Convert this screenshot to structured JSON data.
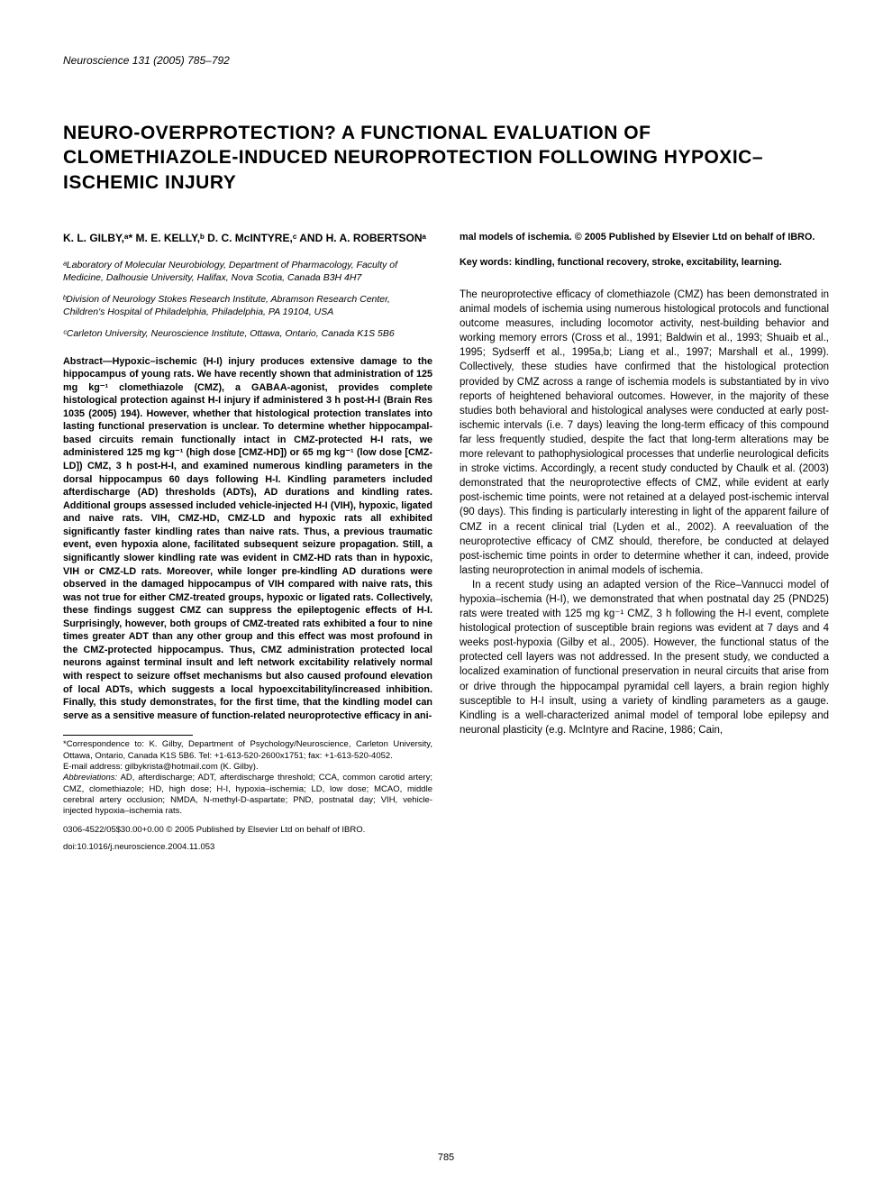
{
  "journal": {
    "name": "Neuroscience",
    "volume": "131",
    "year": "(2005)",
    "pages": "785–792"
  },
  "title": "NEURO-OVERPROTECTION? A FUNCTIONAL EVALUATION OF CLOMETHIAZOLE-INDUCED NEUROPROTECTION FOLLOWING HYPOXIC–ISCHEMIC INJURY",
  "authors": "K. L. GILBY,ᵃ* M. E. KELLY,ᵇ D. C. McINTYRE,ᶜ AND H. A. ROBERTSONᵃ",
  "affiliations": [
    "ᵃLaboratory of Molecular Neurobiology, Department of Pharmacology, Faculty of Medicine, Dalhousie University, Halifax, Nova Scotia, Canada B3H 4H7",
    "ᵇDivision of Neurology Stokes Research Institute, Abramson Research Center, Children's Hospital of Philadelphia, Philadelphia, PA 19104, USA",
    "ᶜCarleton University, Neuroscience Institute, Ottawa, Ontario, Canada K1S 5B6"
  ],
  "abstract": "Abstract—Hypoxic–ischemic (H-I) injury produces extensive damage to the hippocampus of young rats. We have recently shown that administration of 125 mg kg⁻¹ clomethiazole (CMZ), a GABAA-agonist, provides complete histological protection against H-I injury if administered 3 h post-H-I (Brain Res 1035 (2005) 194). However, whether that histological protection translates into lasting functional preservation is unclear. To determine whether hippocampal-based circuits remain functionally intact in CMZ-protected H-I rats, we administered 125 mg kg⁻¹ (high dose [CMZ-HD]) or 65 mg kg⁻¹ (low dose [CMZ-LD]) CMZ, 3 h post-H-I, and examined numerous kindling parameters in the dorsal hippocampus 60 days following H-I. Kindling parameters included afterdischarge (AD) thresholds (ADTs), AD durations and kindling rates. Additional groups assessed included vehicle-injected H-I (VIH), hypoxic, ligated and naive rats. VIH, CMZ-HD, CMZ-LD and hypoxic rats all exhibited significantly faster kindling rates than naive rats. Thus, a previous traumatic event, even hypoxia alone, facilitated subsequent seizure propagation. Still, a significantly slower kindling rate was evident in CMZ-HD rats than in hypoxic, VIH or CMZ-LD rats. Moreover, while longer pre-kindling AD durations were observed in the damaged hippocampus of VIH compared with naive rats, this was not true for either CMZ-treated groups, hypoxic or ligated rats. Collectively, these findings suggest CMZ can suppress the epileptogenic effects of H-I. Surprisingly, however, both groups of CMZ-treated rats exhibited a four to nine times greater ADT than any other group and this effect was most profound in the CMZ-protected hippocampus. Thus, CMZ administration protected local neurons against terminal insult and left network excitability relatively normal with respect to seizure offset mechanisms but also caused profound elevation of local ADTs, which suggests a local hypoexcitability/increased inhibition. Finally, this study demonstrates, for the first time, that the kindling model can serve as a sensitive measure of function-related neuroprotective efficacy in ani-",
  "abstract_tail": "mal models of ischemia. © 2005 Published by Elsevier Ltd on behalf of IBRO.",
  "keywords": "Key words: kindling, functional recovery, stroke, excitability, learning.",
  "body_paragraphs": [
    "The neuroprotective efficacy of clomethiazole (CMZ) has been demonstrated in animal models of ischemia using numerous histological protocols and functional outcome measures, including locomotor activity, nest-building behavior and working memory errors (Cross et al., 1991; Baldwin et al., 1993; Shuaib et al., 1995; Sydserff et al., 1995a,b; Liang et al., 1997; Marshall et al., 1999). Collectively, these studies have confirmed that the histological protection provided by CMZ across a range of ischemia models is substantiated by in vivo reports of heightened behavioral outcomes. However, in the majority of these studies both behavioral and histological analyses were conducted at early post-ischemic intervals (i.e. 7 days) leaving the long-term efficacy of this compound far less frequently studied, despite the fact that long-term alterations may be more relevant to pathophysiological processes that underlie neurological deficits in stroke victims. Accordingly, a recent study conducted by Chaulk et al. (2003) demonstrated that the neuroprotective effects of CMZ, while evident at early post-ischemic time points, were not retained at a delayed post-ischemic interval (90 days). This finding is particularly interesting in light of the apparent failure of CMZ in a recent clinical trial (Lyden et al., 2002). A reevaluation of the neuroprotective efficacy of CMZ should, therefore, be conducted at delayed post-ischemic time points in order to determine whether it can, indeed, provide lasting neuroprotection in animal models of ischemia.",
    "In a recent study using an adapted version of the Rice–Vannucci model of hypoxia–ischemia (H-I), we demonstrated that when postnatal day 25 (PND25) rats were treated with 125 mg kg⁻¹ CMZ, 3 h following the H-I event, complete histological protection of susceptible brain regions was evident at 7 days and 4 weeks post-hypoxia (Gilby et al., 2005). However, the functional status of the protected cell layers was not addressed. In the present study, we conducted a localized examination of functional preservation in neural circuits that arise from or drive through the hippocampal pyramidal cell layers, a brain region highly susceptible to H-I insult, using a variety of kindling parameters as a gauge. Kindling is a well-characterized animal model of temporal lobe epilepsy and neuronal plasticity (e.g. McIntyre and Racine, 1986; Cain,"
  ],
  "footnotes": {
    "correspondence": "*Correspondence to: K. Gilby, Department of Psychology/Neuroscience, Carleton University, Ottawa, Ontario, Canada K1S 5B6. Tel: +1-613-520-2600x1751; fax: +1-613-520-4052.",
    "email_label": "E-mail address:",
    "email": "gilbykrista@hotmail.com (K. Gilby).",
    "abbrev_label": "Abbreviations:",
    "abbrev": "AD, afterdischarge; ADT, afterdischarge threshold; CCA, common carotid artery; CMZ, clomethiazole; HD, high dose; H-I, hypoxia–ischemia; LD, low dose; MCAO, middle cerebral artery occlusion; NMDA, N-methyl-D-aspartate; PND, postnatal day; VIH, vehicle-injected hypoxia–ischemia rats."
  },
  "copyright": "0306-4522/05$30.00+0.00 © 2005 Published by Elsevier Ltd on behalf of IBRO.",
  "doi": "doi:10.1016/j.neuroscience.2004.11.053",
  "page_number": "785",
  "colors": {
    "background": "#ffffff",
    "text": "#000000",
    "link": "#2040c0"
  },
  "typography": {
    "title_fontsize": 21,
    "body_fontsize": 11.5,
    "abstract_fontsize": 10.8,
    "footnote_fontsize": 9.5,
    "affil_fontsize": 10.5
  }
}
